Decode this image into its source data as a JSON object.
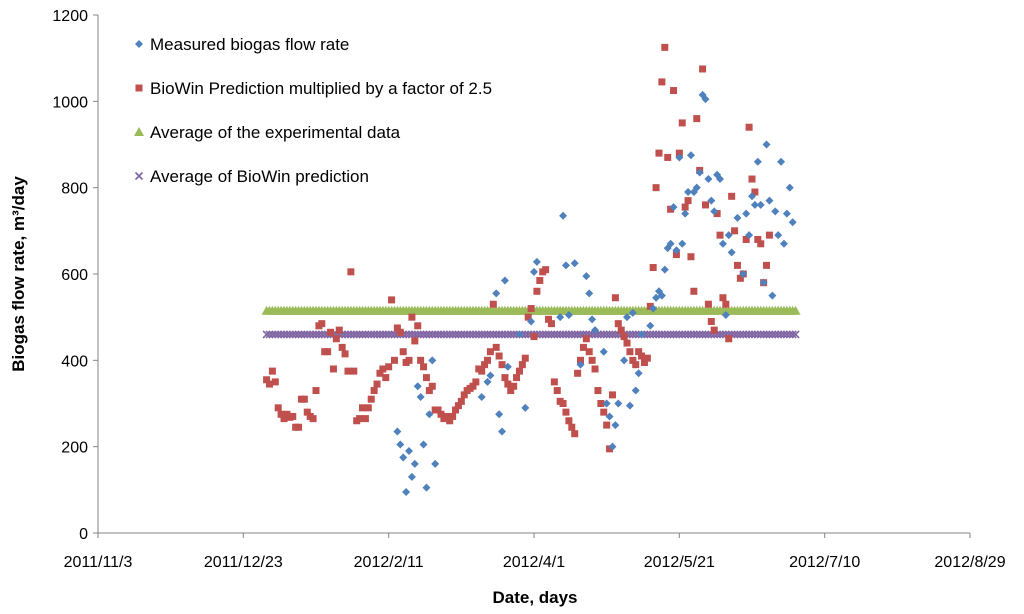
{
  "chart_data": {
    "type": "scatter",
    "title": "",
    "xlabel": "Date, days",
    "ylabel": "Biogas flow rate, m³/day",
    "x_domain_days": [
      0,
      300
    ],
    "ylim": [
      0,
      1200
    ],
    "yticks": [
      0,
      200,
      400,
      600,
      800,
      1000,
      1200
    ],
    "xticks": [
      {
        "day": 0,
        "label": "2011/11/3"
      },
      {
        "day": 50,
        "label": "2011/12/23"
      },
      {
        "day": 100,
        "label": "2012/2/11"
      },
      {
        "day": 150,
        "label": "2012/4/1"
      },
      {
        "day": 200,
        "label": "2012/5/21"
      },
      {
        "day": 250,
        "label": "2012/7/10"
      },
      {
        "day": 300,
        "label": "2012/8/29"
      }
    ],
    "grid": false,
    "legend_position": "top-left",
    "series": [
      {
        "name": "Measured biogas flow rate",
        "marker": "diamond",
        "color": "#4F81BD",
        "points": [
          [
            103,
            235
          ],
          [
            104,
            205
          ],
          [
            105,
            175
          ],
          [
            106,
            95
          ],
          [
            107,
            190
          ],
          [
            108,
            130
          ],
          [
            109,
            160
          ],
          [
            110,
            340
          ],
          [
            111,
            315
          ],
          [
            112,
            205
          ],
          [
            113,
            105
          ],
          [
            114,
            275
          ],
          [
            115,
            400
          ],
          [
            116,
            160
          ],
          [
            132,
            315
          ],
          [
            134,
            350
          ],
          [
            135,
            365
          ],
          [
            137,
            555
          ],
          [
            138,
            275
          ],
          [
            139,
            235
          ],
          [
            140,
            585
          ],
          [
            141,
            385
          ],
          [
            145,
            460
          ],
          [
            147,
            290
          ],
          [
            149,
            490
          ],
          [
            150,
            605
          ],
          [
            151,
            628
          ],
          [
            159,
            500
          ],
          [
            160,
            735
          ],
          [
            161,
            620
          ],
          [
            162,
            505
          ],
          [
            164,
            625
          ],
          [
            166,
            390
          ],
          [
            168,
            595
          ],
          [
            169,
            555
          ],
          [
            170,
            495
          ],
          [
            171,
            470
          ],
          [
            174,
            420
          ],
          [
            175,
            300
          ],
          [
            176,
            270
          ],
          [
            177,
            200
          ],
          [
            178,
            250
          ],
          [
            179,
            300
          ],
          [
            181,
            400
          ],
          [
            182,
            500
          ],
          [
            183,
            295
          ],
          [
            184,
            510
          ],
          [
            185,
            330
          ],
          [
            186,
            370
          ],
          [
            187,
            460
          ],
          [
            190,
            480
          ],
          [
            191,
            520
          ],
          [
            192,
            545
          ],
          [
            193,
            560
          ],
          [
            194,
            550
          ],
          [
            195,
            610
          ],
          [
            196,
            660
          ],
          [
            197,
            670
          ],
          [
            198,
            755
          ],
          [
            199,
            655
          ],
          [
            200,
            870
          ],
          [
            201,
            670
          ],
          [
            202,
            740
          ],
          [
            203,
            790
          ],
          [
            204,
            875
          ],
          [
            205,
            790
          ],
          [
            206,
            800
          ],
          [
            207,
            835
          ],
          [
            208,
            1015
          ],
          [
            209,
            1005
          ],
          [
            210,
            820
          ],
          [
            211,
            770
          ],
          [
            212,
            745
          ],
          [
            213,
            830
          ],
          [
            214,
            820
          ],
          [
            215,
            670
          ],
          [
            216,
            505
          ],
          [
            217,
            690
          ],
          [
            218,
            650
          ],
          [
            220,
            730
          ],
          [
            222,
            600
          ],
          [
            223,
            740
          ],
          [
            224,
            690
          ],
          [
            225,
            780
          ],
          [
            226,
            760
          ],
          [
            227,
            860
          ],
          [
            228,
            760
          ],
          [
            229,
            580
          ],
          [
            230,
            900
          ],
          [
            231,
            770
          ],
          [
            232,
            550
          ],
          [
            233,
            745
          ],
          [
            234,
            690
          ],
          [
            235,
            860
          ],
          [
            236,
            670
          ],
          [
            237,
            740
          ],
          [
            238,
            800
          ],
          [
            239,
            720
          ]
        ]
      },
      {
        "name": "BioWin Prediction multiplied by a factor of 2.5",
        "marker": "square",
        "color": "#C0504D",
        "points": [
          [
            58,
            355
          ],
          [
            59,
            345
          ],
          [
            60,
            375
          ],
          [
            61,
            350
          ],
          [
            62,
            290
          ],
          [
            63,
            275
          ],
          [
            64,
            265
          ],
          [
            65,
            275
          ],
          [
            66,
            268
          ],
          [
            67,
            270
          ],
          [
            68,
            245
          ],
          [
            69,
            245
          ],
          [
            70,
            310
          ],
          [
            71,
            310
          ],
          [
            72,
            280
          ],
          [
            73,
            270
          ],
          [
            74,
            265
          ],
          [
            75,
            330
          ],
          [
            76,
            480
          ],
          [
            77,
            485
          ],
          [
            78,
            420
          ],
          [
            79,
            420
          ],
          [
            80,
            465
          ],
          [
            81,
            380
          ],
          [
            82,
            450
          ],
          [
            83,
            470
          ],
          [
            84,
            430
          ],
          [
            85,
            415
          ],
          [
            86,
            375
          ],
          [
            87,
            605
          ],
          [
            88,
            375
          ],
          [
            89,
            260
          ],
          [
            90,
            265
          ],
          [
            91,
            290
          ],
          [
            92,
            265
          ],
          [
            93,
            290
          ],
          [
            94,
            310
          ],
          [
            95,
            330
          ],
          [
            96,
            345
          ],
          [
            97,
            370
          ],
          [
            98,
            380
          ],
          [
            99,
            360
          ],
          [
            100,
            385
          ],
          [
            101,
            540
          ],
          [
            102,
            400
          ],
          [
            103,
            475
          ],
          [
            104,
            465
          ],
          [
            105,
            420
          ],
          [
            106,
            395
          ],
          [
            107,
            400
          ],
          [
            108,
            500
          ],
          [
            109,
            445
          ],
          [
            110,
            480
          ],
          [
            111,
            400
          ],
          [
            112,
            385
          ],
          [
            113,
            360
          ],
          [
            114,
            330
          ],
          [
            115,
            340
          ],
          [
            116,
            285
          ],
          [
            117,
            285
          ],
          [
            118,
            275
          ],
          [
            119,
            265
          ],
          [
            120,
            270
          ],
          [
            121,
            260
          ],
          [
            122,
            270
          ],
          [
            123,
            285
          ],
          [
            124,
            295
          ],
          [
            125,
            305
          ],
          [
            126,
            320
          ],
          [
            127,
            330
          ],
          [
            128,
            335
          ],
          [
            129,
            340
          ],
          [
            130,
            350
          ],
          [
            131,
            380
          ],
          [
            132,
            375
          ],
          [
            133,
            390
          ],
          [
            134,
            400
          ],
          [
            135,
            420
          ],
          [
            136,
            530
          ],
          [
            137,
            430
          ],
          [
            138,
            410
          ],
          [
            139,
            390
          ],
          [
            140,
            360
          ],
          [
            141,
            345
          ],
          [
            142,
            330
          ],
          [
            143,
            340
          ],
          [
            144,
            360
          ],
          [
            145,
            375
          ],
          [
            146,
            390
          ],
          [
            147,
            405
          ],
          [
            148,
            500
          ],
          [
            149,
            520
          ],
          [
            150,
            455
          ],
          [
            151,
            560
          ],
          [
            152,
            585
          ],
          [
            153,
            605
          ],
          [
            154,
            610
          ],
          [
            155,
            495
          ],
          [
            156,
            485
          ],
          [
            157,
            350
          ],
          [
            158,
            330
          ],
          [
            159,
            305
          ],
          [
            160,
            300
          ],
          [
            161,
            280
          ],
          [
            162,
            260
          ],
          [
            163,
            245
          ],
          [
            164,
            230
          ],
          [
            165,
            370
          ],
          [
            166,
            400
          ],
          [
            167,
            430
          ],
          [
            168,
            450
          ],
          [
            169,
            420
          ],
          [
            170,
            400
          ],
          [
            171,
            380
          ],
          [
            172,
            330
          ],
          [
            173,
            300
          ],
          [
            174,
            280
          ],
          [
            175,
            250
          ],
          [
            176,
            195
          ],
          [
            177,
            320
          ],
          [
            178,
            545
          ],
          [
            179,
            485
          ],
          [
            180,
            470
          ],
          [
            181,
            455
          ],
          [
            182,
            440
          ],
          [
            183,
            420
          ],
          [
            184,
            400
          ],
          [
            185,
            390
          ],
          [
            186,
            420
          ],
          [
            187,
            410
          ],
          [
            188,
            395
          ],
          [
            189,
            405
          ],
          [
            190,
            525
          ],
          [
            191,
            615
          ],
          [
            192,
            800
          ],
          [
            193,
            880
          ],
          [
            194,
            1045
          ],
          [
            195,
            1125
          ],
          [
            196,
            870
          ],
          [
            197,
            750
          ],
          [
            198,
            1025
          ],
          [
            199,
            645
          ],
          [
            200,
            880
          ],
          [
            201,
            950
          ],
          [
            202,
            755
          ],
          [
            203,
            770
          ],
          [
            204,
            640
          ],
          [
            205,
            560
          ],
          [
            206,
            960
          ],
          [
            207,
            840
          ],
          [
            208,
            1075
          ],
          [
            209,
            760
          ],
          [
            210,
            530
          ],
          [
            211,
            490
          ],
          [
            212,
            470
          ],
          [
            213,
            740
          ],
          [
            214,
            690
          ],
          [
            215,
            545
          ],
          [
            216,
            530
          ],
          [
            217,
            450
          ],
          [
            218,
            780
          ],
          [
            219,
            700
          ],
          [
            220,
            620
          ],
          [
            221,
            590
          ],
          [
            222,
            600
          ],
          [
            223,
            680
          ],
          [
            224,
            940
          ],
          [
            225,
            820
          ],
          [
            226,
            790
          ],
          [
            227,
            680
          ],
          [
            228,
            670
          ],
          [
            229,
            580
          ],
          [
            230,
            620
          ],
          [
            231,
            690
          ]
        ]
      },
      {
        "name": "Average of the experimental data",
        "marker": "triangle",
        "color": "#9BBB59",
        "constant": 515,
        "x_range": [
          58,
          240
        ]
      },
      {
        "name": "Average of BioWin prediction",
        "marker": "x",
        "color": "#8064A2",
        "constant": 460,
        "x_range": [
          58,
          240
        ]
      }
    ]
  }
}
